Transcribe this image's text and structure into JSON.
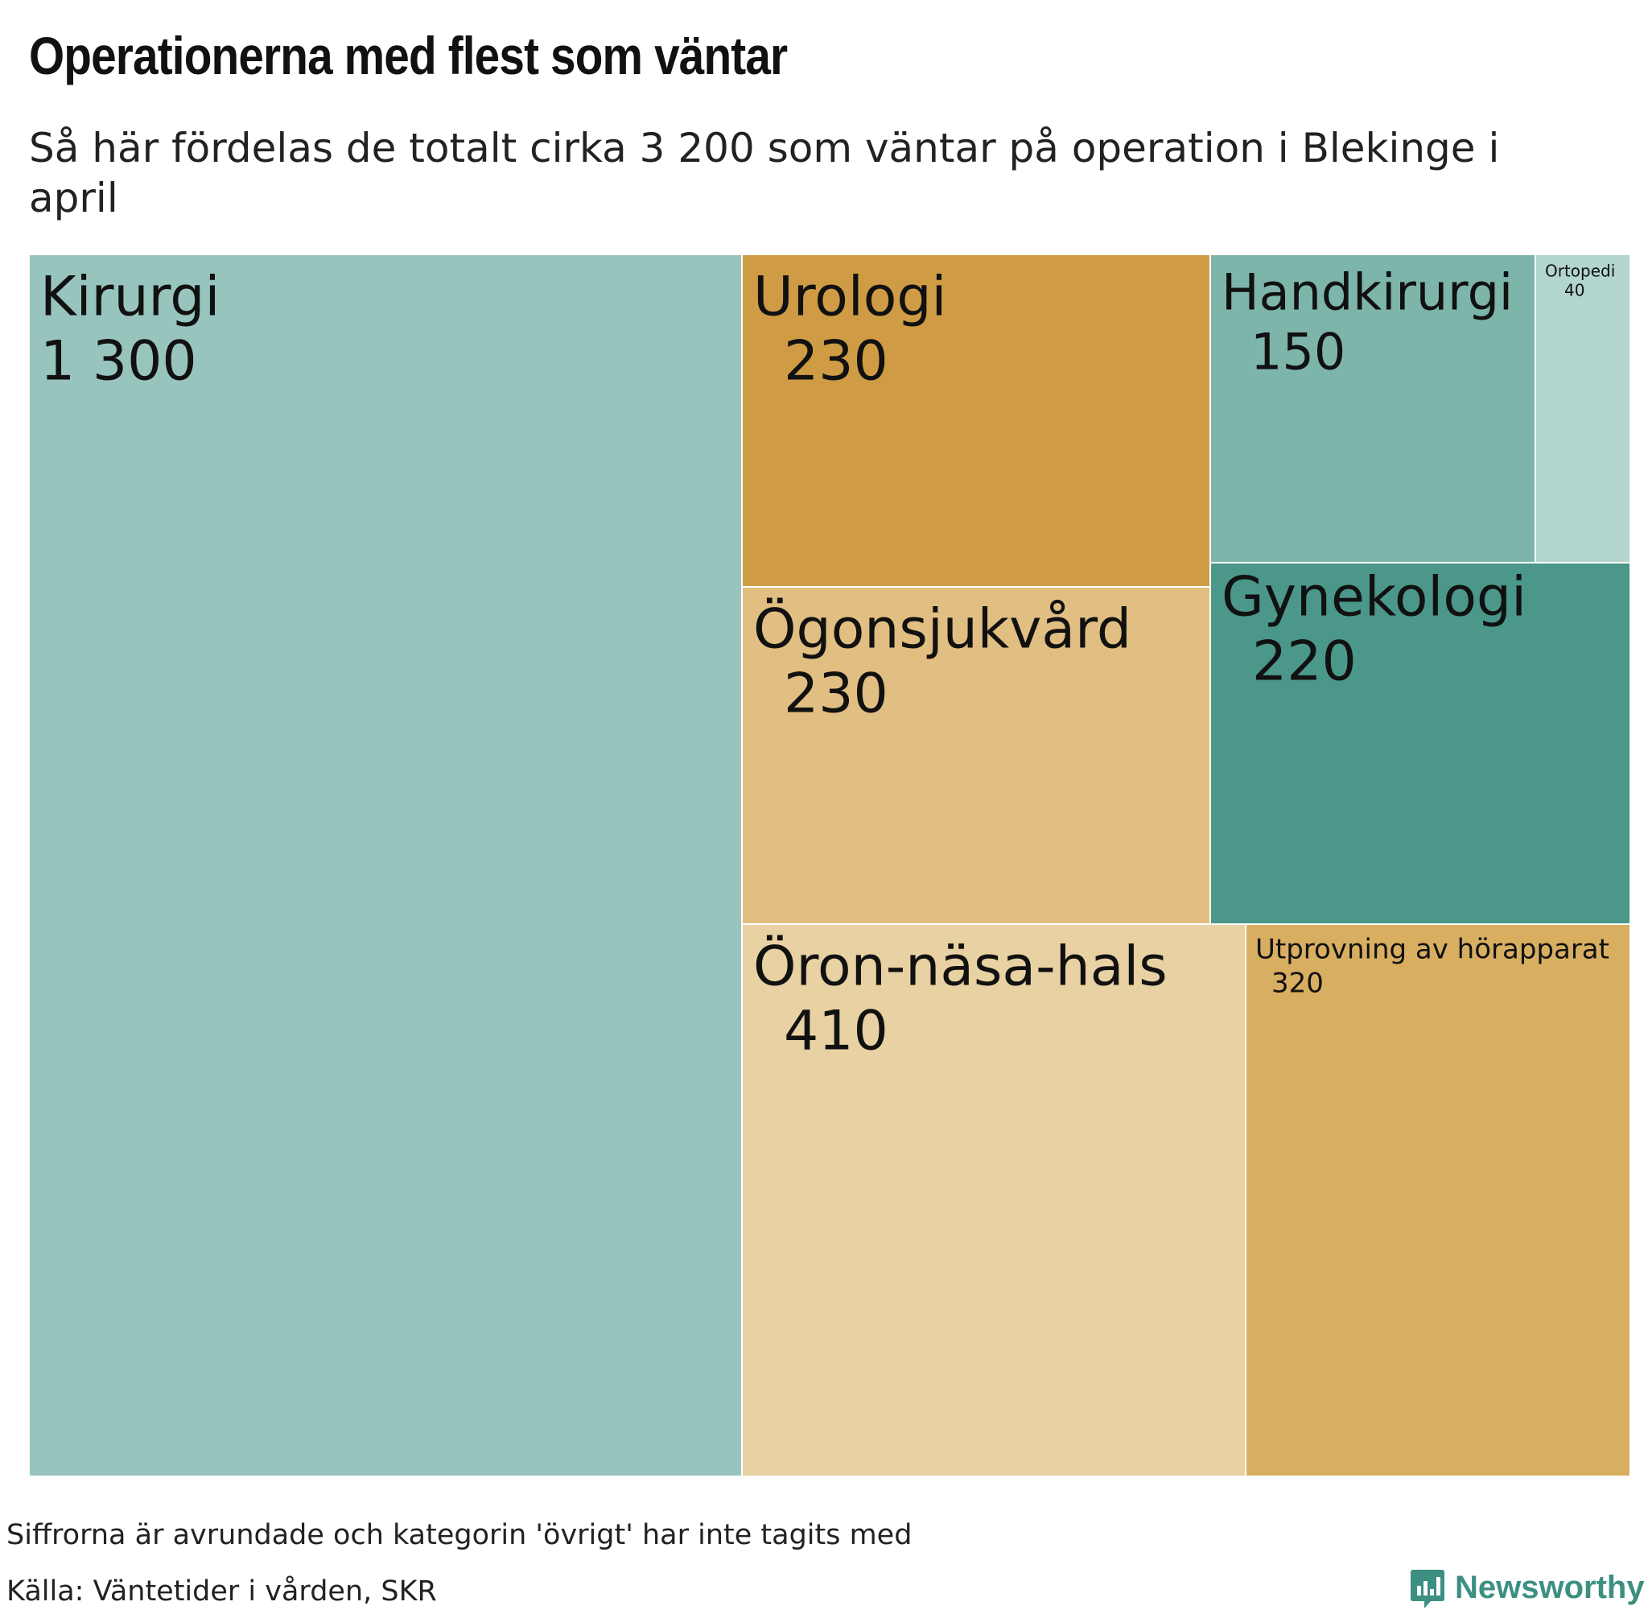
{
  "title": "Operationerna med flest som väntar",
  "subtitle": "Så här fördelas de totalt cirka 3 200 som väntar på operation i Blekinge i april",
  "note": "Siffrorna är avrundade och kategorin 'övrigt' har inte tagits med",
  "source": "Källa: Väntetider i vården, SKR",
  "brand": "Newsworthy",
  "colors": {
    "kirurgi": "#98c4be",
    "urologi": "#cf9c45",
    "ogonsjukvard": "#e1be82",
    "oron_nasa_hals": "#e8d1a2",
    "utprovning": "#d8ae61",
    "handkirurgi": "#7db5ab",
    "ortopedi": "#b2d6cf",
    "gynekologi": "#4b9789",
    "brand": "#3d8f82"
  },
  "chart_data": {
    "type": "treemap",
    "title": "Operationerna med flest som väntar",
    "subtitle": "Så här fördelas de totalt cirka 3 200 som väntar på operation i Blekinge i april",
    "items": [
      {
        "name": "Kirurgi",
        "value": 1300,
        "value_label": "1 300",
        "color": "#98c4be"
      },
      {
        "name": "Urologi",
        "value": 230,
        "value_label": "230",
        "color": "#cf9c45"
      },
      {
        "name": "Ögonsjukvård",
        "value": 230,
        "value_label": "230",
        "color": "#e1be82"
      },
      {
        "name": "Öron-näsa-hals",
        "value": 410,
        "value_label": "410",
        "color": "#e8d1a2"
      },
      {
        "name": "Utprovning av hörapparat",
        "value": 320,
        "value_label": "320",
        "color": "#d8ae61"
      },
      {
        "name": "Handkirurgi",
        "value": 150,
        "value_label": "150",
        "color": "#7db5ab"
      },
      {
        "name": "Ortopedi",
        "value": 40,
        "value_label": "40",
        "color": "#b2d6cf"
      },
      {
        "name": "Gynekologi",
        "value": 220,
        "value_label": "220",
        "color": "#4b9789"
      }
    ]
  }
}
